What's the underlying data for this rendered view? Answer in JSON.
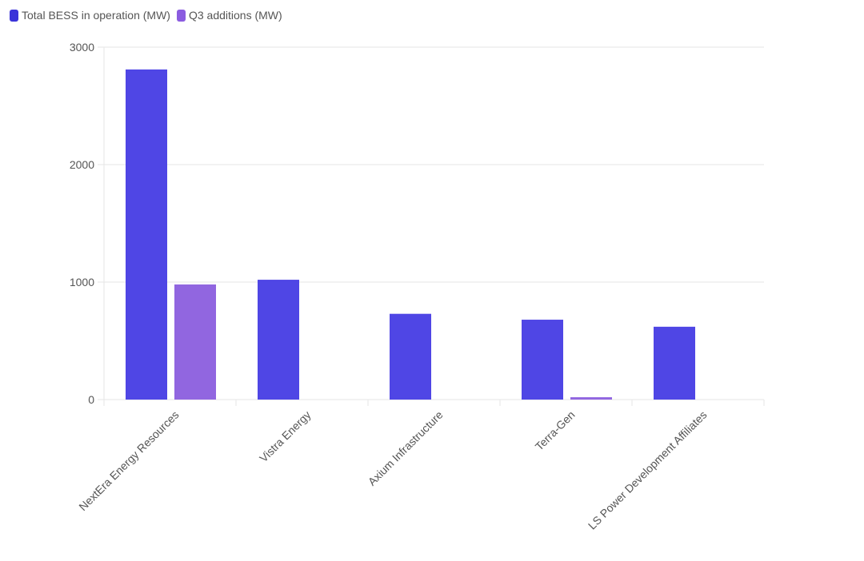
{
  "chart_data": {
    "type": "bar",
    "categories": [
      "NextEra Energy Resources",
      "Vistra Energy",
      "Axium Infrastructure",
      "Terra-Gen",
      "LS Power Development Affiliates"
    ],
    "series": [
      {
        "name": "Total BESS in operation (MW)",
        "color": "#4f46e5",
        "values": [
          2810,
          1020,
          730,
          680,
          620
        ]
      },
      {
        "name": "Q3 additions (MW)",
        "color": "#9166e0",
        "values": [
          980,
          0,
          0,
          20,
          0
        ]
      }
    ],
    "ylim": [
      0,
      3000
    ],
    "yticks": [
      0,
      1000,
      2000,
      3000
    ],
    "grid": true,
    "legend": "top-left",
    "xlabel": "",
    "ylabel": ""
  }
}
